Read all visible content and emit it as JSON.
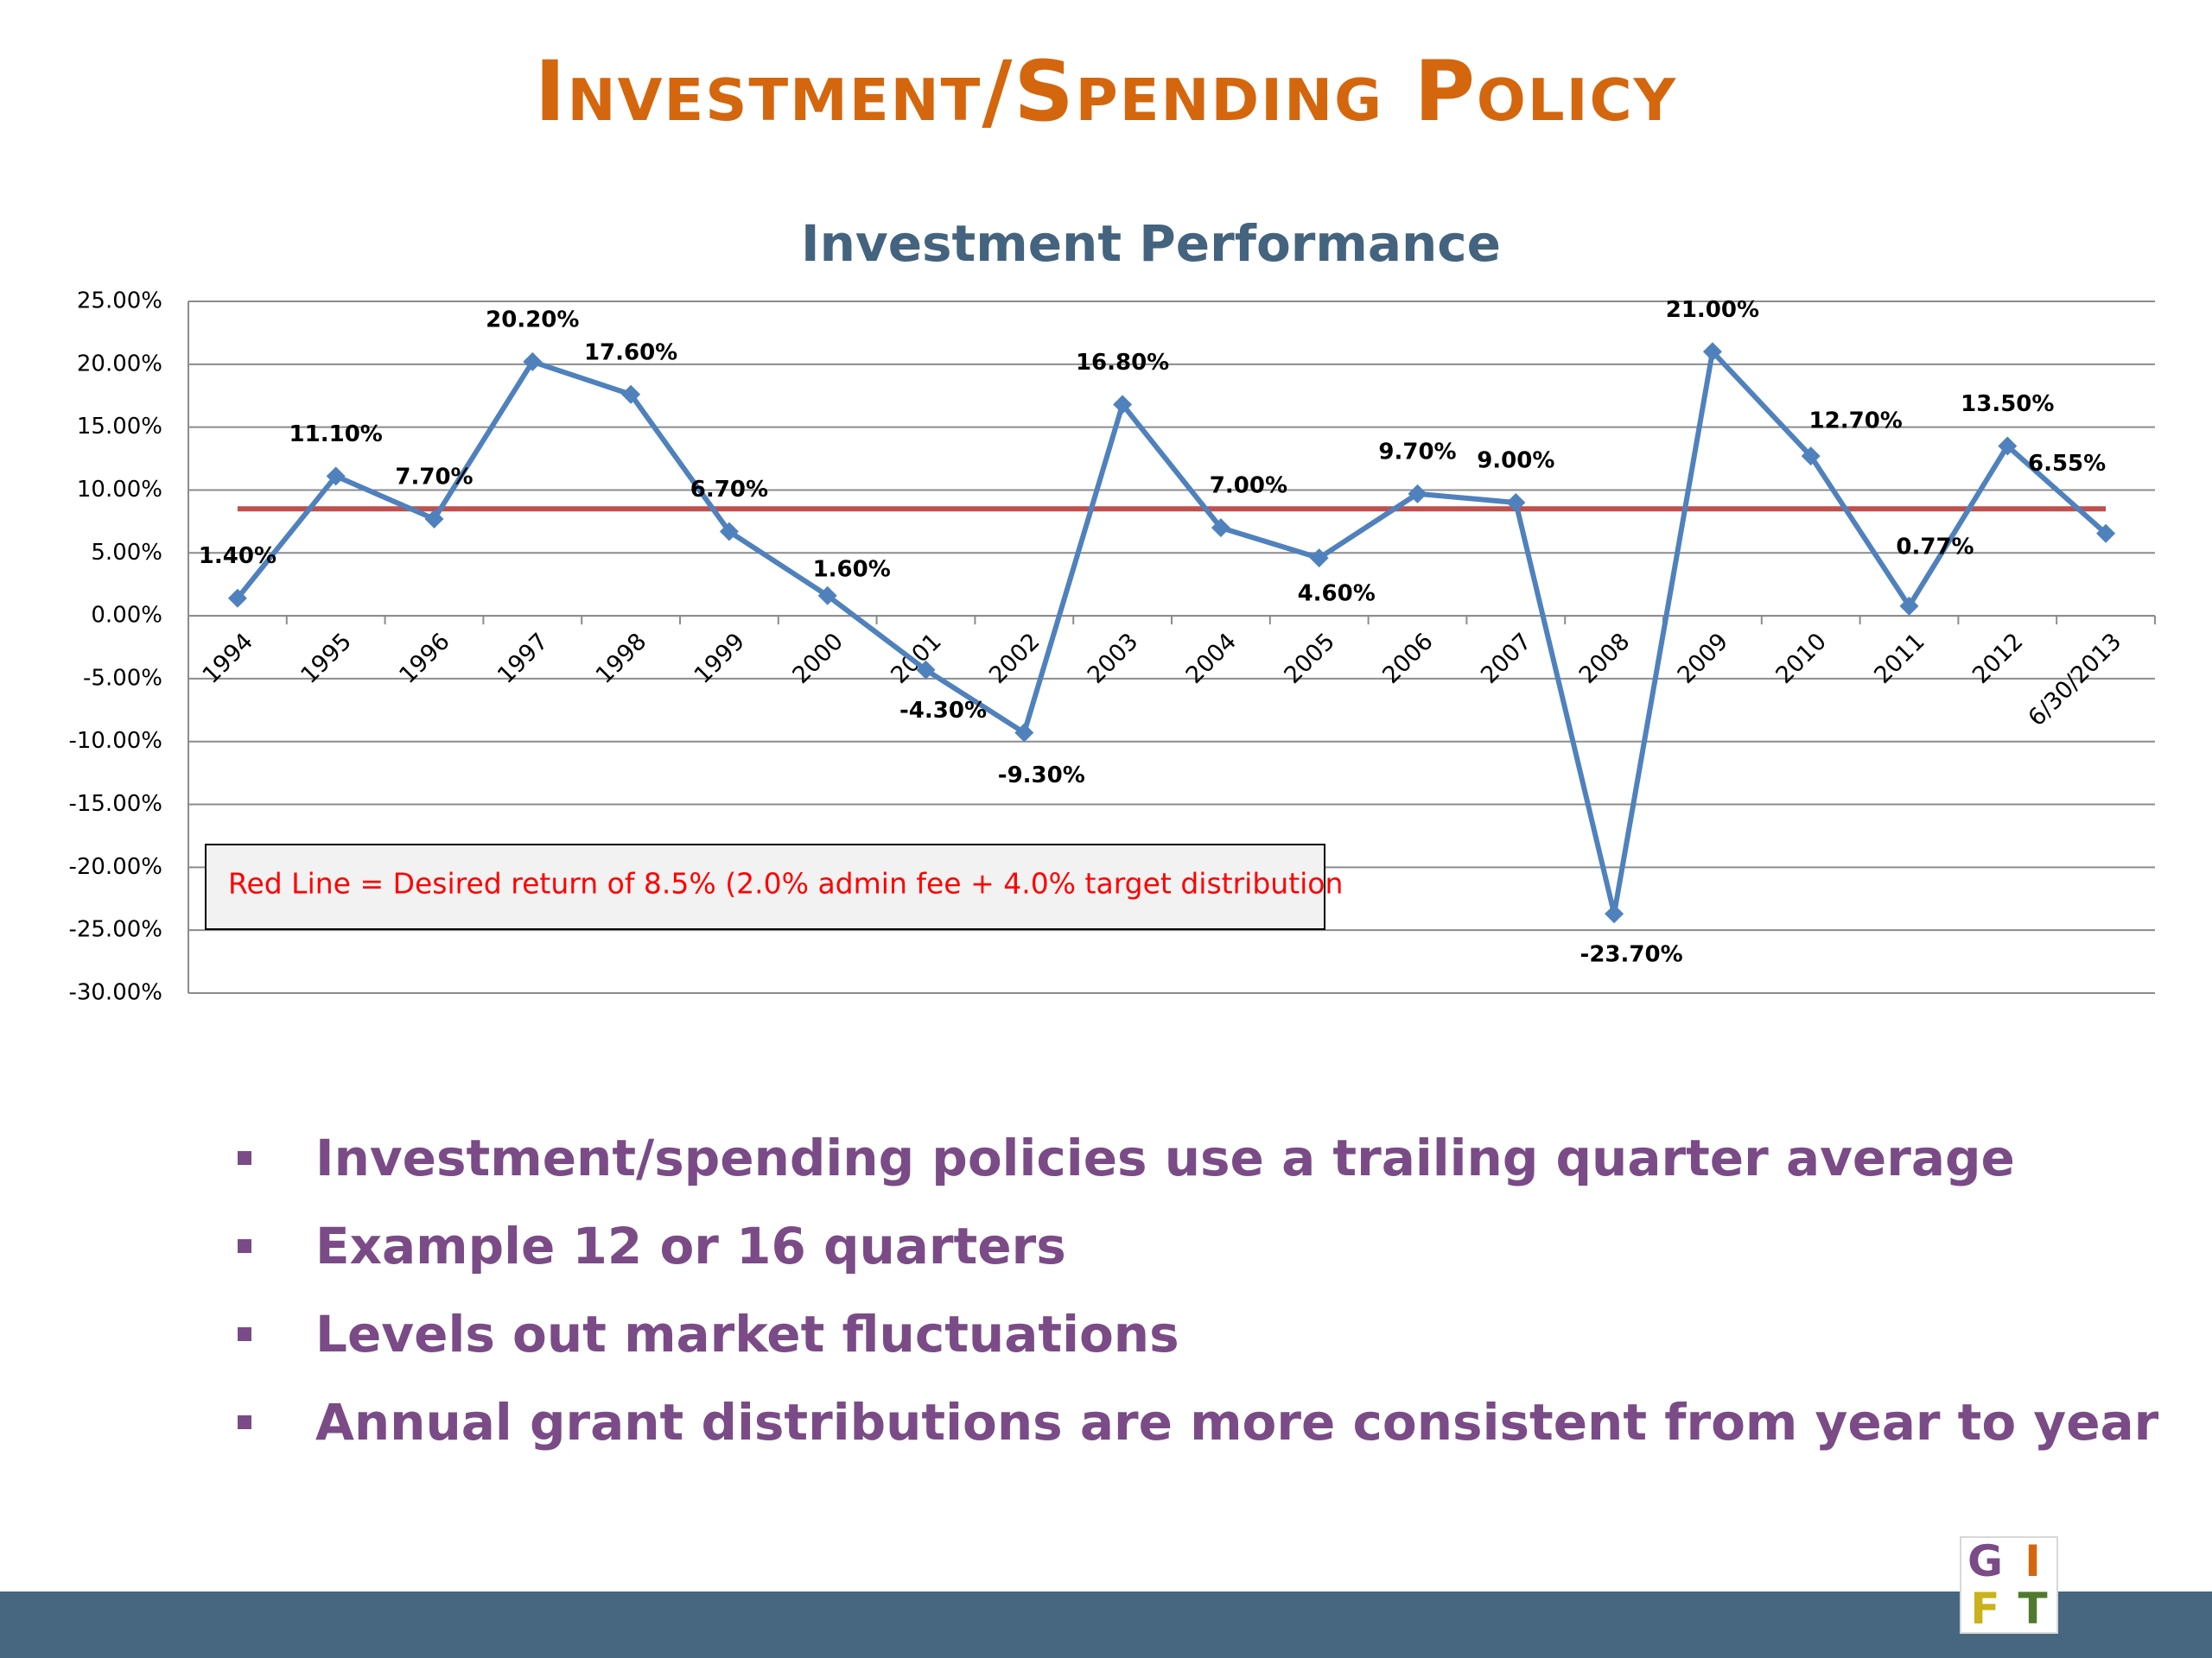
{
  "slide": {
    "title": "Investment/Spending Policy",
    "bullets": [
      "Investment/spending policies use a trailing quarter average",
      "Example 12 or 16 quarters",
      "Levels out market fluctuations",
      "Annual grant distributions are more consistent from year to year"
    ],
    "logo_letters": [
      "G",
      "I",
      "F",
      "T"
    ]
  },
  "colors": {
    "title": "#D4660D",
    "chart_title": "#44637E",
    "series_line": "#4F81BD",
    "target_line": "#C0504D",
    "bullet_text": "#7A4B86",
    "footer_bar": "#46677F",
    "annotation_text": "#FF0000"
  },
  "chart_data": {
    "type": "line",
    "title": "Investment Performance",
    "xlabel": "",
    "ylabel": "",
    "ylim": [
      -30,
      25
    ],
    "ytick_step": 5,
    "ytick_labels": [
      "25.00%",
      "20.00%",
      "15.00%",
      "10.00%",
      "5.00%",
      "0.00%",
      "-5.00%",
      "-10.00%",
      "-15.00%",
      "-20.00%",
      "-25.00%",
      "-30.00%"
    ],
    "grid": true,
    "categories": [
      "1994",
      "1995",
      "1996",
      "1997",
      "1998",
      "1999",
      "2000",
      "2001",
      "2002",
      "2003",
      "2004",
      "2005",
      "2006",
      "2007",
      "2008",
      "2009",
      "2010",
      "2011",
      "2012",
      "6/30/2013"
    ],
    "series": [
      {
        "values": [
          1.4,
          11.1,
          7.7,
          20.2,
          17.6,
          6.7,
          1.6,
          -4.3,
          -9.3,
          16.8,
          7.0,
          4.6,
          9.7,
          9.0,
          -23.7,
          21.0,
          12.7,
          0.77,
          13.5,
          6.55
        ],
        "data_labels": [
          "1.40%",
          "11.10%",
          "7.70%",
          "20.20%",
          "17.60%",
          "6.70%",
          "1.60%",
          "-4.30%",
          "-9.30%",
          "16.80%",
          "7.00%",
          "4.60%",
          "9.70%",
          "9.00%",
          "-23.70%",
          "21.00%",
          "12.70%",
          "0.77%",
          "13.50%",
          "6.55%"
        ]
      }
    ],
    "reference_line": {
      "value": 8.5
    },
    "annotation": "Red Line = Desired return of 8.5% (2.0% admin fee + 4.0% target distribution"
  }
}
